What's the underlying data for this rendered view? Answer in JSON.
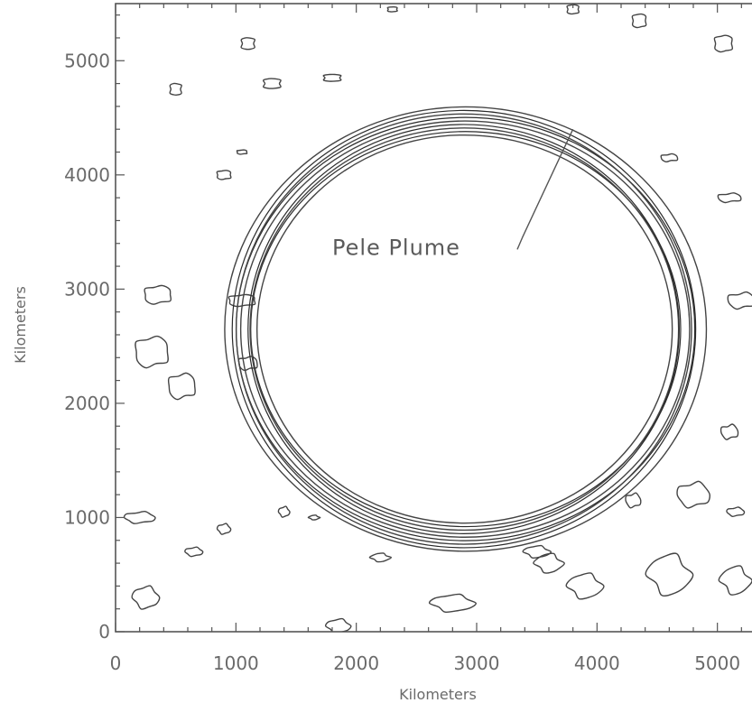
{
  "chart_data": {
    "type": "contour",
    "title": "",
    "xlabel": "Kilometers",
    "ylabel": "Kilometers",
    "xlim": [
      0,
      5400
    ],
    "ylim": [
      0,
      5500
    ],
    "xticks": [
      0,
      1000,
      2000,
      3000,
      4000,
      5000
    ],
    "xtick_labels": [
      "0",
      "1000",
      "2000",
      "3000",
      "4000",
      "5000"
    ],
    "yticks": [
      0,
      1000,
      2000,
      3000,
      4000,
      5000
    ],
    "ytick_labels": [
      "0",
      "1000",
      "2000",
      "3000",
      "4000",
      "5000"
    ],
    "grid": false,
    "legend": "none",
    "ring": {
      "center_km": [
        2900,
        2650
      ],
      "radius_km": 1850,
      "width_km": 250,
      "contour_levels": 9
    },
    "annotation": {
      "text": "Pele Plume",
      "text_at_km": [
        1800,
        3300
      ],
      "points_to_km": [
        3800,
        4400
      ]
    },
    "noise_contours_km": [
      [
        500,
        4750,
        60
      ],
      [
        1100,
        5150,
        70
      ],
      [
        1300,
        4800,
        90
      ],
      [
        1800,
        4850,
        90
      ],
      [
        2300,
        5450,
        50
      ],
      [
        3800,
        5450,
        60
      ],
      [
        4350,
        5350,
        70
      ],
      [
        5050,
        5150,
        90
      ],
      [
        900,
        4000,
        70
      ],
      [
        1050,
        4200,
        50
      ],
      [
        1050,
        2900,
        130
      ],
      [
        350,
        2950,
        130
      ],
      [
        300,
        2450,
        160
      ],
      [
        550,
        2150,
        130
      ],
      [
        1100,
        2350,
        90
      ],
      [
        4600,
        4150,
        80
      ],
      [
        5100,
        3800,
        110
      ],
      [
        5200,
        2900,
        130
      ],
      [
        5100,
        1750,
        80
      ],
      [
        4300,
        1150,
        70
      ],
      [
        4800,
        1200,
        150
      ],
      [
        5150,
        1050,
        80
      ],
      [
        200,
        1000,
        140
      ],
      [
        650,
        700,
        80
      ],
      [
        900,
        900,
        60
      ],
      [
        1400,
        1050,
        50
      ],
      [
        250,
        300,
        120
      ],
      [
        1850,
        50,
        110
      ],
      [
        2800,
        250,
        200
      ],
      [
        3500,
        700,
        120
      ],
      [
        3900,
        400,
        160
      ],
      [
        4600,
        500,
        200
      ],
      [
        5150,
        450,
        140
      ],
      [
        3600,
        600,
        130
      ],
      [
        2200,
        650,
        90
      ],
      [
        1650,
        1000,
        50
      ]
    ]
  }
}
